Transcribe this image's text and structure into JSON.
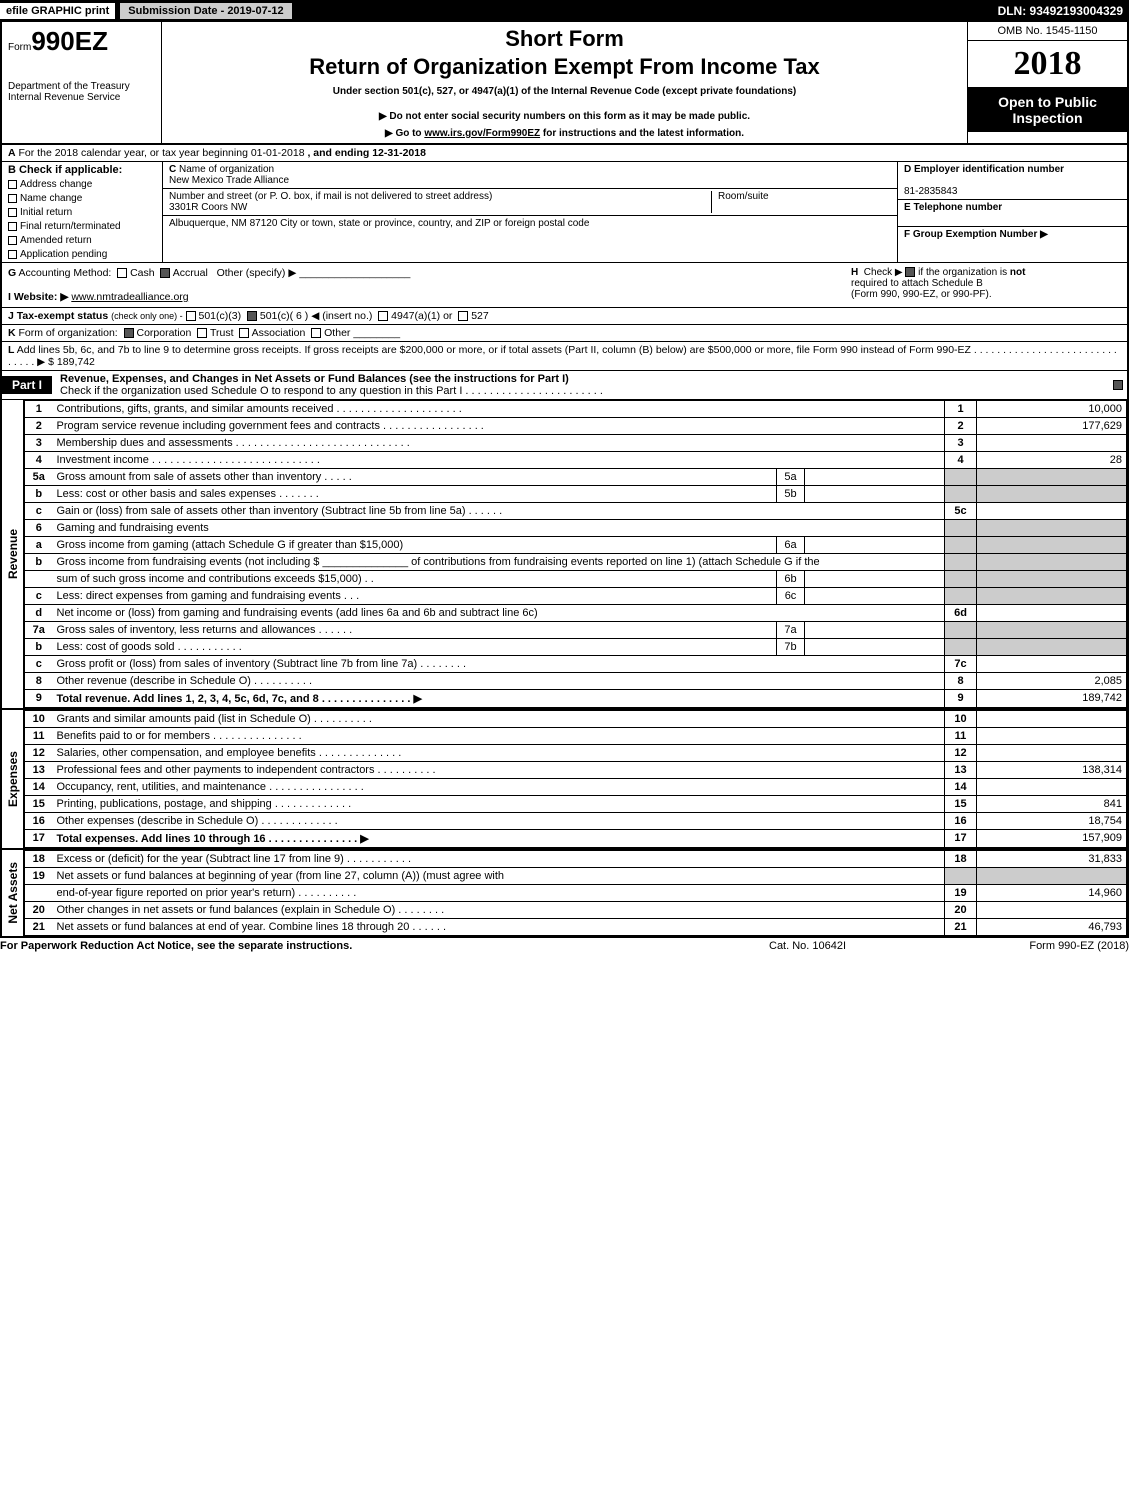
{
  "topbar": {
    "efile_prefix": "efile",
    "efile_suffix": " GRAPHIC print",
    "submission": "Submission Date - 2019-07-12",
    "dln": "DLN: 93492193004329"
  },
  "header": {
    "form_prefix": "Form",
    "form_number": "990EZ",
    "dept1": "Department of the Treasury",
    "dept2": "Internal Revenue Service",
    "short_form": "Short Form",
    "return_title": "Return of Organization Exempt From Income Tax",
    "under_sec": "Under section 501(c), 527, or 4947(a)(1) of the Internal Revenue Code (except private foundations)",
    "donot": "▶ Do not enter social security numbers on this form as it may be made public.",
    "goto_pre": "▶ Go to ",
    "goto_link": "www.irs.gov/Form990EZ",
    "goto_post": " for instructions and the latest information.",
    "omb": "OMB No. 1545-1150",
    "year": "2018",
    "open1": "Open to Public",
    "open2": "Inspection"
  },
  "A": {
    "label_a": "A",
    "text": "For the 2018 calendar year, or tax year beginning 01-01-2018",
    "ending": ", and ending 12-31-2018"
  },
  "B": {
    "label": "B",
    "check_if": "Check if applicable:",
    "opts": [
      "Address change",
      "Name change",
      "Initial return",
      "Final return/terminated",
      "Amended return",
      "Application pending"
    ]
  },
  "C": {
    "label": "C",
    "name_label": "Name of organization",
    "name": "New Mexico Trade Alliance",
    "addr_label": "Number and street (or P. O. box, if mail is not delivered to street address)",
    "addr": "3301R Coors NW",
    "room_label": "Room/suite",
    "city_full": "Albuquerque, NM  87120        City or town, state or province, country, and ZIP or foreign postal code"
  },
  "D": {
    "label": "D Employer identification number",
    "ein": "81-2835843"
  },
  "E": {
    "label": "E Telephone number",
    "val": ""
  },
  "F": {
    "label": "F Group Exemption Number ▶",
    "val": ""
  },
  "G": {
    "label": "G",
    "text": "Accounting Method:",
    "cash": "Cash",
    "accrual": "Accrual",
    "other": "Other (specify) ▶"
  },
  "H": {
    "label": "H",
    "text1": "Check ▶",
    "text2": " if the organization is ",
    "not": "not",
    "text3": " required to attach Schedule B",
    "text4": "(Form 990, 990-EZ, or 990-PF)."
  },
  "I": {
    "label": "I Website: ▶",
    "url": "www.nmtradealliance.org"
  },
  "J": {
    "label": "J Tax-exempt status",
    "text": "(check only one) -",
    "o1": "501(c)(3)",
    "o2": "501(c)( 6 ) ◀ (insert no.)",
    "o3": "4947(a)(1) or",
    "o4": "527"
  },
  "K": {
    "label": "K",
    "text": "Form of organization:",
    "o1": "Corporation",
    "o2": "Trust",
    "o3": "Association",
    "o4": "Other"
  },
  "L": {
    "label": "L",
    "text": "Add lines 5b, 6c, and 7b to line 9 to determine gross receipts. If gross receipts are $200,000 or more, or if total assets (Part II, column (B) below) are $500,000 or more, file Form 990 instead of Form 990-EZ  . . . . . . . . . . . . . . . . . . . . . . . . . . . . . . ▶ $ 189,742"
  },
  "part1": {
    "tag": "Part I",
    "title": "Revenue, Expenses, and Changes in Net Assets or Fund Balances (see the instructions for Part I)",
    "check_line": "Check if the organization used Schedule O to respond to any question in this Part I . . . . . . . . . . . . . . . . . . . . . . ."
  },
  "sides": {
    "revenue": "Revenue",
    "expenses": "Expenses",
    "netassets": "Net Assets"
  },
  "lines": {
    "l1": {
      "n": "1",
      "d": "Contributions, gifts, grants, and similar amounts received  . . . . . . . . . . . . . . . . . . . . .",
      "num": "1",
      "amt": "10,000"
    },
    "l2": {
      "n": "2",
      "d": "Program service revenue including government fees and contracts  . . . . . . . . . . . . . . . . .",
      "num": "2",
      "amt": "177,629"
    },
    "l3": {
      "n": "3",
      "d": "Membership dues and assessments  . . . . . . . . . . . . . . . . . . . . . . . . . . . . .",
      "num": "3",
      "amt": ""
    },
    "l4": {
      "n": "4",
      "d": "Investment income  . . . . . . . . . . . . . . . . . . . . . . . . . . . .",
      "num": "4",
      "amt": "28"
    },
    "l5a": {
      "n": "5a",
      "d": "Gross amount from sale of assets other than inventory  . . . . .",
      "mini": "5a"
    },
    "l5b": {
      "n": "b",
      "d": "Less: cost or other basis and sales expenses  . . . . . . .",
      "mini": "5b"
    },
    "l5c": {
      "n": "c",
      "d": "Gain or (loss) from sale of assets other than inventory (Subtract line 5b from line 5a)            .  .  .  .  .  .",
      "num": "5c",
      "amt": ""
    },
    "l6": {
      "n": "6",
      "d": "Gaming and fundraising events"
    },
    "l6a": {
      "n": "a",
      "d": "Gross income from gaming (attach Schedule G if greater than $15,000)",
      "mini": "6a"
    },
    "l6b": {
      "n": "b",
      "d": "Gross income from fundraising events (not including $ ______________ of contributions from fundraising events reported on line 1) (attach Schedule G if the"
    },
    "l6b2": {
      "d": "sum of such gross income and contributions exceeds $15,000)              . .",
      "mini": "6b"
    },
    "l6c": {
      "n": "c",
      "d": "Less: direct expenses from gaming and fundraising events             . . .",
      "mini": "6c"
    },
    "l6d": {
      "n": "d",
      "d": "Net income or (loss) from gaming and fundraising events (add lines 6a and 6b and subtract line 6c)",
      "num": "6d",
      "amt": ""
    },
    "l7a": {
      "n": "7a",
      "d": "Gross sales of inventory, less returns and allowances              .  .  .  .  .  .",
      "mini": "7a"
    },
    "l7b": {
      "n": "b",
      "d": "Less: cost of goods sold                                 .  .  .  .  .  .  .  .  .  .  .",
      "mini": "7b"
    },
    "l7c": {
      "n": "c",
      "d": "Gross profit or (loss) from sales of inventory (Subtract line 7b from line 7a)            .  .  .  .  .  .  .  .",
      "num": "7c",
      "amt": ""
    },
    "l8": {
      "n": "8",
      "d": "Other revenue (describe in Schedule O)                               .  .  .  .  .  .  .  .  .  .",
      "num": "8",
      "amt": "2,085"
    },
    "l9": {
      "n": "9",
      "d": "Total revenue. Add lines 1, 2, 3, 4, 5c, 6d, 7c, and 8         .  .  .  .  .  .  .  .  .  .  .  .  .  .  . ▶",
      "num": "9",
      "amt": "189,742"
    },
    "l10": {
      "n": "10",
      "d": "Grants and similar amounts paid (list in Schedule O)                    .  .  .  .  .  .  .  .  .  .",
      "num": "10",
      "amt": ""
    },
    "l11": {
      "n": "11",
      "d": "Benefits paid to or for members                      .  .  .  .  .  .  .  .  .  .  .  .  .  .  .",
      "num": "11",
      "amt": ""
    },
    "l12": {
      "n": "12",
      "d": "Salaries, other compensation, and employee benefits         .  .  .  .  .  .  .  .  .  .  .  .  .  .",
      "num": "12",
      "amt": ""
    },
    "l13": {
      "n": "13",
      "d": "Professional fees and other payments to independent contractors        .  .  .  .  .  .  .  .  .  .",
      "num": "13",
      "amt": "138,314"
    },
    "l14": {
      "n": "14",
      "d": "Occupancy, rent, utilities, and maintenance          .  .  .  .  .  .  .  .  .  .  .  .  .  .  .  .",
      "num": "14",
      "amt": ""
    },
    "l15": {
      "n": "15",
      "d": "Printing, publications, postage, and shipping                .  .  .  .  .  .  .  .  .  .  .  .  .",
      "num": "15",
      "amt": "841"
    },
    "l16": {
      "n": "16",
      "d": "Other expenses (describe in Schedule O)                     .  .  .  .  .  .  .  .  .  .  .  .  .",
      "num": "16",
      "amt": "18,754"
    },
    "l17": {
      "n": "17",
      "d": "Total expenses. Add lines 10 through 16             .  .  .  .  .  .  .  .  .  .  .  .  .  .  . ▶",
      "num": "17",
      "amt": "157,909"
    },
    "l18": {
      "n": "18",
      "d": "Excess or (deficit) for the year (Subtract line 17 from line 9)            .  .  .  .  .  .  .  .  .  .  .",
      "num": "18",
      "amt": "31,833"
    },
    "l19": {
      "n": "19",
      "d": "Net assets or fund balances at beginning of year (from line 27, column (A)) (must agree with"
    },
    "l19b": {
      "d": "end-of-year figure reported on prior year's return)                    .  .  .  .  .  .  .  .  .  .",
      "num": "19",
      "amt": "14,960"
    },
    "l20": {
      "n": "20",
      "d": "Other changes in net assets or fund balances (explain in Schedule O)         .  .  .  .  .  .  .  .",
      "num": "20",
      "amt": ""
    },
    "l21": {
      "n": "21",
      "d": "Net assets or fund balances at end of year. Combine lines 18 through 20          .  .  .  .  .  .",
      "num": "21",
      "amt": "46,793"
    }
  },
  "footer": {
    "left": "For Paperwork Reduction Act Notice, see the separate instructions.",
    "center": "Cat. No. 10642I",
    "right": "Form 990-EZ (2018)"
  },
  "colors": {
    "black": "#000000",
    "shade": "#cccccc"
  }
}
